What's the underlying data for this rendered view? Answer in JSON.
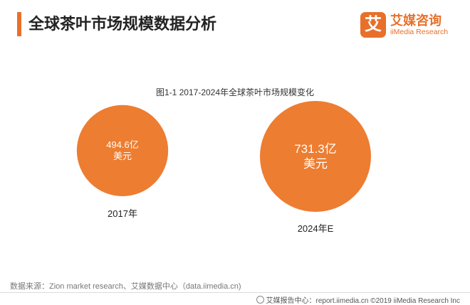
{
  "header": {
    "title": "全球茶叶市场规模数据分析",
    "accent_color": "#e8702a"
  },
  "logo": {
    "mark": "艾",
    "cn": "艾媒咨询",
    "en": "iiMedia Research"
  },
  "chart_data": {
    "type": "bubble",
    "title": "图1-1 2017-2024年全球茶叶市场规模变化",
    "unit": "亿美元",
    "color": "#ed7d31",
    "categories": [
      "2017年",
      "2024年E"
    ],
    "values": [
      494.6,
      731.3
    ],
    "value_labels": [
      [
        "494.6亿",
        "美元"
      ],
      [
        "731.3亿",
        "美元"
      ]
    ]
  },
  "source": "数据来源：Zion market research、艾媒数据中心（data.iimedia.cn)",
  "footer": "艾媒报告中心：report.iimedia.cn ©2019 iiMedia Research Inc"
}
